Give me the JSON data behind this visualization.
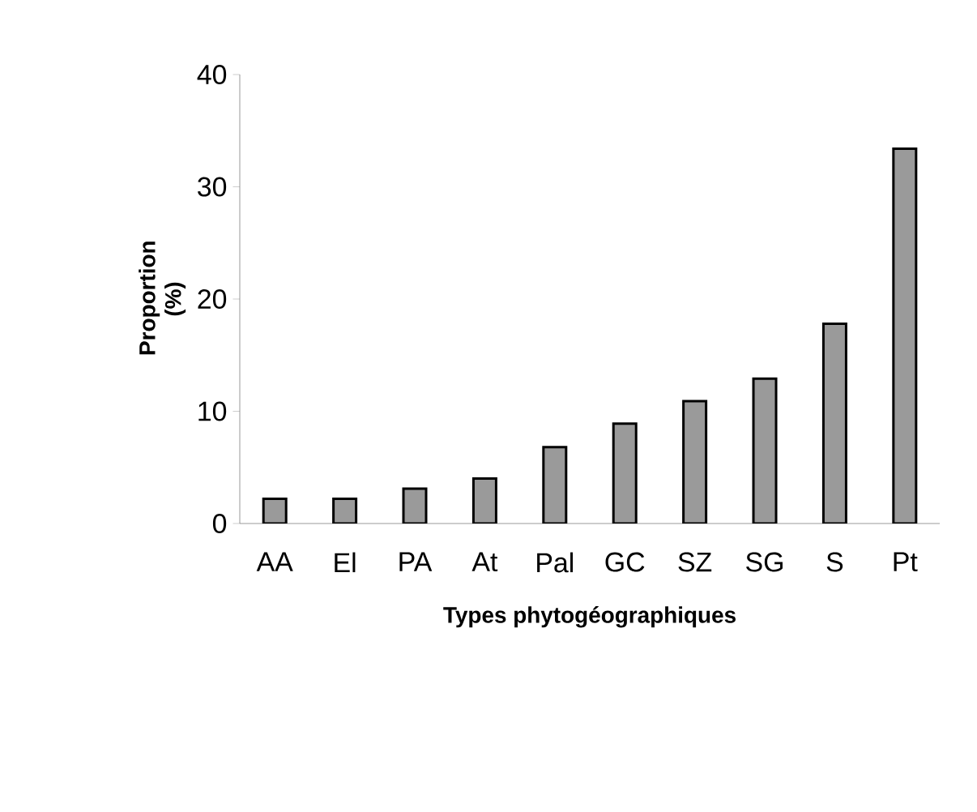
{
  "chart_data": {
    "type": "bar",
    "xlabel": "Types phytogéographiques",
    "ylabel": "Proportion (%)",
    "categories": [
      "AA",
      "El",
      "PA",
      "At",
      "Pal",
      "GC",
      "SZ",
      "SG",
      "S",
      "Pt"
    ],
    "values": [
      2.2,
      2.2,
      3.1,
      4.0,
      6.8,
      8.9,
      10.9,
      12.9,
      17.8,
      33.4
    ],
    "color": "#9a9a9a",
    "ylim": [
      0,
      40
    ],
    "yticks": [
      0,
      10,
      20,
      30,
      40
    ],
    "grid": false
  }
}
